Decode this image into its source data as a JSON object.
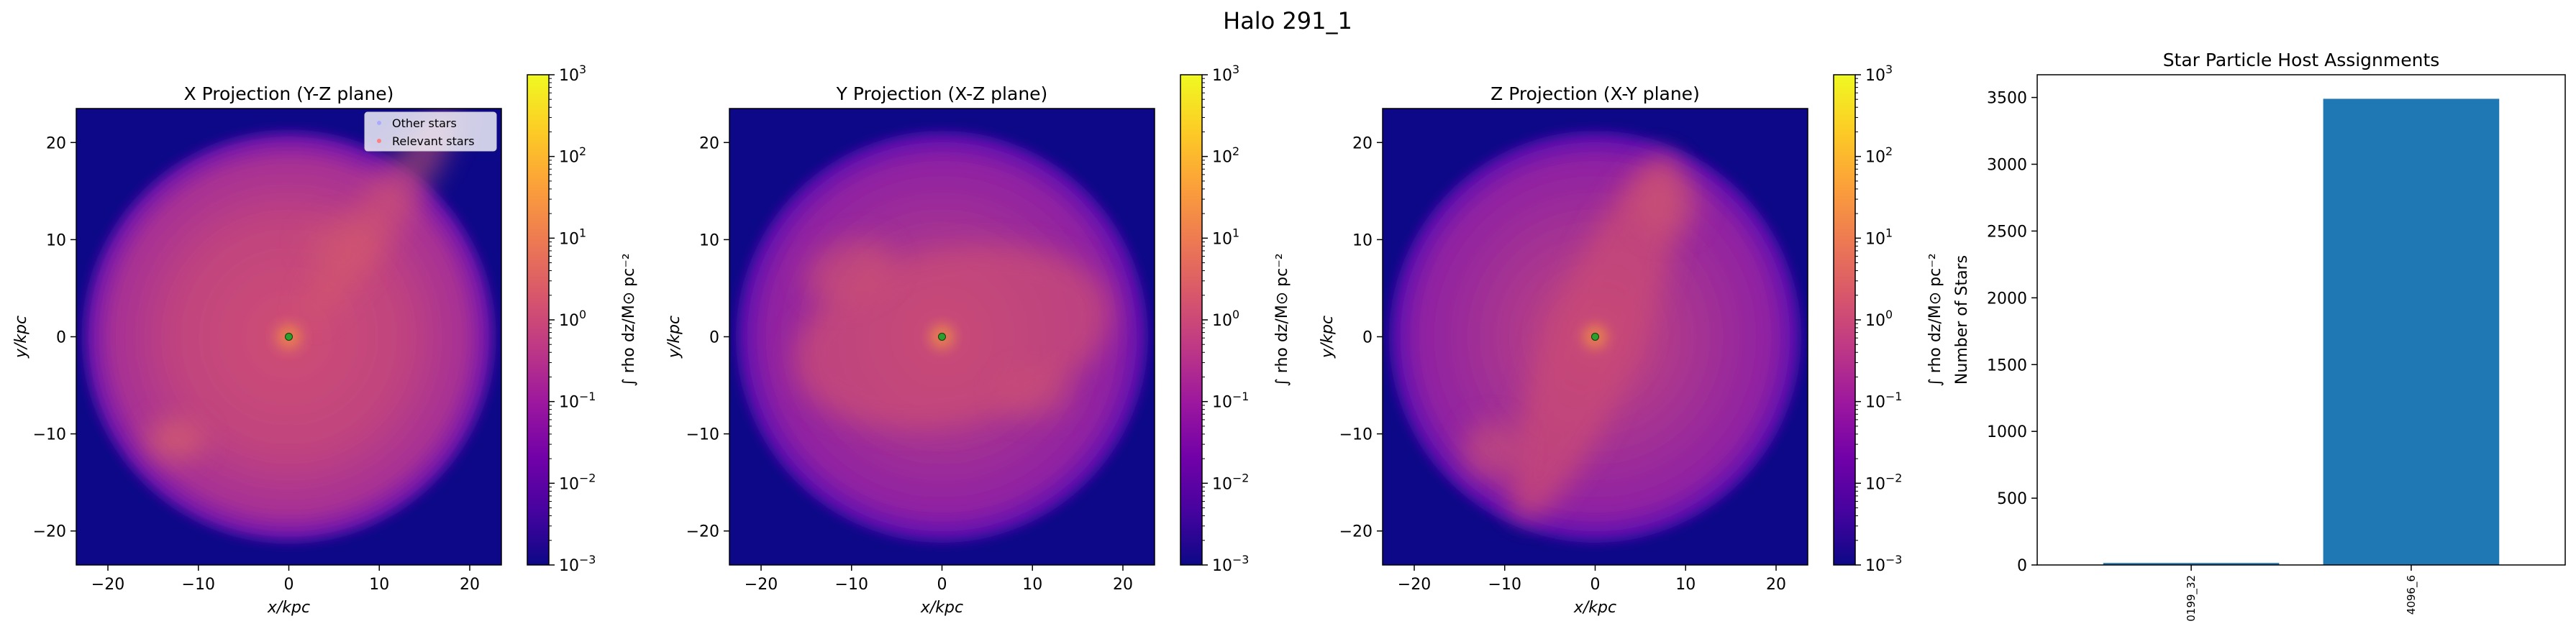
{
  "figure_title": "Halo 291_1",
  "density_colormap": [
    "#0d0887",
    "#46039f",
    "#7201a8",
    "#9c179e",
    "#bd3786",
    "#d8576b",
    "#ed7953",
    "#fb9f3a",
    "#fdca26",
    "#f0f921"
  ],
  "colors": {
    "background": "#0d0887",
    "halo_fill": "#c4477a",
    "halo_mid": "#9a2ea0",
    "bar": "#1f77b4",
    "center_marker": "#2ca02c"
  },
  "chart_data": [
    {
      "type": "heatmap",
      "title": "X Projection (Y-Z plane)",
      "xlabel": "x/kpc",
      "ylabel": "y/kpc",
      "xlim": [
        -23.5,
        23.5
      ],
      "ylim": [
        -23.5,
        23.5
      ],
      "xticks": [
        -20,
        -10,
        0,
        10,
        20
      ],
      "yticks": [
        -20,
        -10,
        0,
        10,
        20
      ],
      "xticklabels": [
        "−20",
        "−10",
        "0",
        "10",
        "20"
      ],
      "yticklabels": [
        "−20",
        "−10",
        "0",
        "10",
        "20"
      ],
      "colorbar": {
        "label": "∫ rho dz/M⊙ pc⁻²",
        "scale": "log",
        "range": [
          0.001,
          1000
        ],
        "ticks": [
          "10",
          "10",
          "10",
          "10",
          "10",
          "10",
          "10"
        ],
        "exponents": [
          "3",
          "2",
          "1",
          "0",
          "−1",
          "−2",
          "−3"
        ]
      },
      "legend": {
        "location": "upper right",
        "entries": [
          "Other stars",
          "Relevant stars"
        ]
      },
      "center_marker": {
        "x": 0,
        "y": 0
      }
    },
    {
      "type": "heatmap",
      "title": "Y Projection (X-Z plane)",
      "xlabel": "x/kpc",
      "ylabel": "y/kpc",
      "xlim": [
        -23.5,
        23.5
      ],
      "ylim": [
        -23.5,
        23.5
      ],
      "xticks": [
        -20,
        -10,
        0,
        10,
        20
      ],
      "yticks": [
        -20,
        -10,
        0,
        10,
        20
      ],
      "xticklabels": [
        "−20",
        "−10",
        "0",
        "10",
        "20"
      ],
      "yticklabels": [
        "−20",
        "−10",
        "0",
        "10",
        "20"
      ],
      "colorbar": {
        "label": "∫ rho dz/M⊙ pc⁻²",
        "scale": "log",
        "range": [
          0.001,
          1000
        ],
        "ticks": [
          "10",
          "10",
          "10",
          "10",
          "10",
          "10",
          "10"
        ],
        "exponents": [
          "3",
          "2",
          "1",
          "0",
          "−1",
          "−2",
          "−3"
        ]
      },
      "center_marker": {
        "x": 0,
        "y": 0
      }
    },
    {
      "type": "heatmap",
      "title": "Z Projection (X-Y plane)",
      "xlabel": "x/kpc",
      "ylabel": "y/kpc",
      "xlim": [
        -23.5,
        23.5
      ],
      "ylim": [
        -23.5,
        23.5
      ],
      "xticks": [
        -20,
        -10,
        0,
        10,
        20
      ],
      "yticks": [
        -20,
        -10,
        0,
        10,
        20
      ],
      "xticklabels": [
        "−20",
        "−10",
        "0",
        "10",
        "20"
      ],
      "yticklabels": [
        "−20",
        "−10",
        "0",
        "10",
        "20"
      ],
      "colorbar": {
        "label": "∫ rho dz/M⊙ pc⁻²",
        "scale": "log",
        "range": [
          0.001,
          1000
        ],
        "ticks": [
          "10",
          "10",
          "10",
          "10",
          "10",
          "10",
          "10"
        ],
        "exponents": [
          "3",
          "2",
          "1",
          "0",
          "−1",
          "−2",
          "−3"
        ]
      },
      "center_marker": {
        "x": 0,
        "y": 0
      }
    },
    {
      "type": "bar",
      "title": "Star Particle Host Assignments",
      "xlabel": "",
      "ylabel": "Number of Stars",
      "categories": [
        "0199_32",
        "4096_6"
      ],
      "values": [
        15,
        3490
      ],
      "ylim": [
        0,
        3670
      ],
      "yticks": [
        0,
        500,
        1000,
        1500,
        2000,
        2500,
        3000,
        3500
      ],
      "yticklabels": [
        "0",
        "500",
        "1000",
        "1500",
        "2000",
        "2500",
        "3000",
        "3500"
      ],
      "color": "#1f77b4"
    }
  ]
}
